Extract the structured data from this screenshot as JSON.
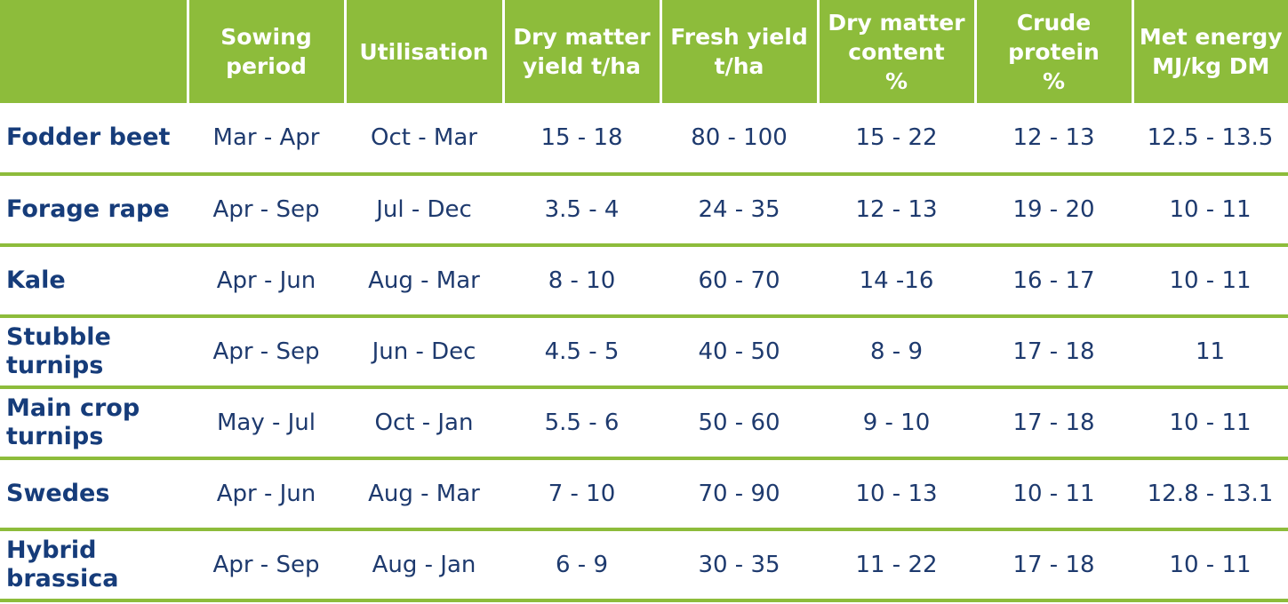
{
  "headers": [
    "",
    "Sowing period",
    "Utilisation",
    "Dry matter yield t/ha",
    "Fresh yield t/ha",
    "Dry matter content %",
    "Crude protein %",
    "Met energy MJ/kg DM"
  ],
  "header_lines": [
    [],
    [
      "Sowing",
      "period"
    ],
    [
      "Utilisation"
    ],
    [
      "Dry matter",
      "yield t/ha"
    ],
    [
      "Fresh yield",
      "t/ha"
    ],
    [
      "Dry matter",
      "content",
      "%"
    ],
    [
      "Crude",
      "protein",
      "%"
    ],
    [
      "Met energy",
      "MJ/kg DM"
    ]
  ],
  "rows": [
    {
      "crop": "Fodder beet",
      "sowing": "Mar - Apr",
      "utilisation": "Oct - Mar",
      "dm_yield": "15 - 18",
      "fresh_yield": "80 - 100",
      "dm_content": "15 - 22",
      "crude_protein": "12 - 13",
      "met_energy": "12.5 - 13.5"
    },
    {
      "crop": "Forage rape",
      "sowing": "Apr - Sep",
      "utilisation": "Jul - Dec",
      "dm_yield": "3.5 - 4",
      "fresh_yield": "24 - 35",
      "dm_content": "12 - 13",
      "crude_protein": "19 - 20",
      "met_energy": "10 - 11"
    },
    {
      "crop": "Kale",
      "sowing": "Apr - Jun",
      "utilisation": "Aug - Mar",
      "dm_yield": "8 - 10",
      "fresh_yield": "60 - 70",
      "dm_content": "14 -16",
      "crude_protein": "16 - 17",
      "met_energy": "10 - 11"
    },
    {
      "crop": "Stubble turnips",
      "sowing": "Apr - Sep",
      "utilisation": "Jun - Dec",
      "dm_yield": "4.5 - 5",
      "fresh_yield": "40 - 50",
      "dm_content": "8 - 9",
      "crude_protein": "17 - 18",
      "met_energy": "11"
    },
    {
      "crop": "Main crop turnips",
      "sowing": "May - Jul",
      "utilisation": "Oct - Jan",
      "dm_yield": "5.5 - 6",
      "fresh_yield": "50 - 60",
      "dm_content": "9 - 10",
      "crude_protein": "17 - 18",
      "met_energy": "10 - 11"
    },
    {
      "crop": "Swedes",
      "sowing": "Apr - Jun",
      "utilisation": "Aug - Mar",
      "dm_yield": "7 - 10",
      "fresh_yield": "70 - 90",
      "dm_content": "10 - 13",
      "crude_protein": "10 - 11",
      "met_energy": "12.8 - 13.1"
    },
    {
      "crop": "Hybrid brassica",
      "sowing": "Apr - Sep",
      "utilisation": "Aug - Jan",
      "dm_yield": "6 - 9",
      "fresh_yield": "30 - 35",
      "dm_content": "11 - 22",
      "crude_protein": "17 - 18",
      "met_energy": "10 - 11"
    }
  ],
  "colors": {
    "header_bg": "#8dbc3b",
    "header_text": "#ffffff",
    "row_divider": "#8dbc3b",
    "crop_text": "#163c7a",
    "value_text": "#1e3a6e"
  }
}
